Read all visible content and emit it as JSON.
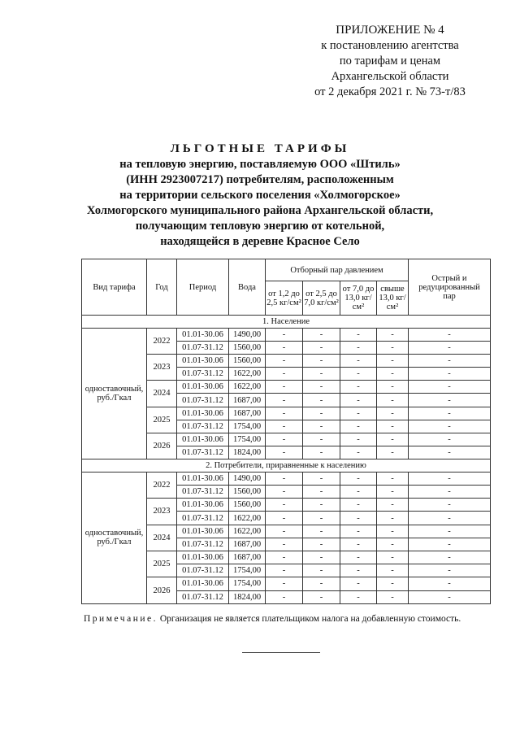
{
  "appendix": {
    "title": "ПРИЛОЖЕНИЕ № 4",
    "lines": [
      "к постановлению агентства",
      "по тарифам и ценам",
      "Архангельской области",
      "от 2 декабря 2021 г. № 73-т/83"
    ]
  },
  "heading": {
    "title": "ЛЬГОТНЫЕ ТАРИФЫ",
    "lines": [
      "на тепловую энергию, поставляемую ООО «Штиль»",
      "(ИНН 2923007217) потребителям, расположенным",
      "на территории сельского поселения «Холмогорское»",
      "Холмогорского муниципального района Архангельской области,",
      "получающим тепловую энергию от котельной,",
      "находящейся в деревне Красное Село"
    ]
  },
  "table": {
    "headers": {
      "type": "Вид тарифа",
      "year": "Год",
      "period": "Период",
      "water": "Вода",
      "steam_group": "Отборный пар давлением",
      "steam": [
        "от 1,2 до 2,5 кг/см²",
        "от 2,5 до 7,0 кг/см²",
        "от 7,0 до 13,0 кг/см²",
        "свыше 13,0 кг/см²"
      ],
      "sharp": "Острый и редуцированный пар"
    },
    "sections": [
      {
        "title": "1. Население",
        "tariff_type": "одноставочный, руб./Гкал",
        "years": [
          {
            "year": "2022",
            "rows": [
              {
                "period": "01.01-30.06",
                "water": "1490,00"
              },
              {
                "period": "01.07-31.12",
                "water": "1560,00"
              }
            ]
          },
          {
            "year": "2023",
            "rows": [
              {
                "period": "01.01-30.06",
                "water": "1560,00"
              },
              {
                "period": "01.07-31.12",
                "water": "1622,00"
              }
            ]
          },
          {
            "year": "2024",
            "rows": [
              {
                "period": "01.01-30.06",
                "water": "1622,00"
              },
              {
                "period": "01.07-31.12",
                "water": "1687,00"
              }
            ]
          },
          {
            "year": "2025",
            "rows": [
              {
                "period": "01.01-30.06",
                "water": "1687,00"
              },
              {
                "period": "01.07-31.12",
                "water": "1754,00"
              }
            ]
          },
          {
            "year": "2026",
            "rows": [
              {
                "period": "01.01-30.06",
                "water": "1754,00"
              },
              {
                "period": "01.07-31.12",
                "water": "1824,00"
              }
            ]
          }
        ]
      },
      {
        "title": "2. Потребители, приравненные к населению",
        "tariff_type": "одноставочный, руб./Гкал",
        "years": [
          {
            "year": "2022",
            "rows": [
              {
                "period": "01.01-30.06",
                "water": "1490,00"
              },
              {
                "period": "01.07-31.12",
                "water": "1560,00"
              }
            ]
          },
          {
            "year": "2023",
            "rows": [
              {
                "period": "01.01-30.06",
                "water": "1560,00"
              },
              {
                "period": "01.07-31.12",
                "water": "1622,00"
              }
            ]
          },
          {
            "year": "2024",
            "rows": [
              {
                "period": "01.01-30.06",
                "water": "1622,00"
              },
              {
                "period": "01.07-31.12",
                "water": "1687,00"
              }
            ]
          },
          {
            "year": "2025",
            "rows": [
              {
                "period": "01.01-30.06",
                "water": "1687,00"
              },
              {
                "period": "01.07-31.12",
                "water": "1754,00"
              }
            ]
          },
          {
            "year": "2026",
            "rows": [
              {
                "period": "01.01-30.06",
                "water": "1754,00"
              },
              {
                "period": "01.07-31.12",
                "water": "1824,00"
              }
            ]
          }
        ]
      }
    ],
    "dash": "-"
  },
  "note": {
    "label": "Примечание.",
    "text": "Организация не является плательщиком налога на добавленную стоимость."
  }
}
